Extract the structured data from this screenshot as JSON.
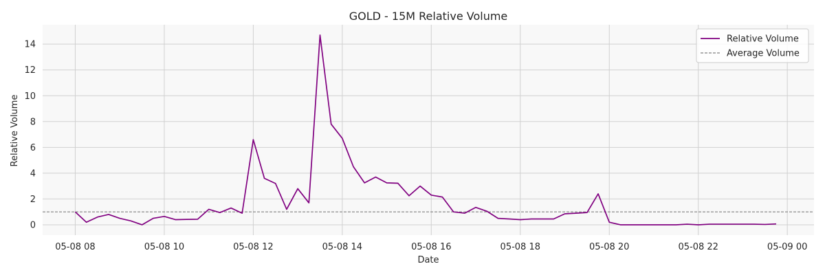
{
  "chart_data": {
    "type": "line",
    "title": "GOLD - 15M Relative Volume",
    "xlabel": "Date",
    "ylabel": "Relative Volume",
    "xlim": [
      "2025-05-08 07:16",
      "2025-05-09 00:36"
    ],
    "ylim": [
      -0.8,
      15.5
    ],
    "grid": true,
    "legend": "top-right",
    "x_ticks": [
      "2025-05-08 08:00",
      "2025-05-08 10:00",
      "2025-05-08 12:00",
      "2025-05-08 14:00",
      "2025-05-08 16:00",
      "2025-05-08 18:00",
      "2025-05-08 20:00",
      "2025-05-08 22:00",
      "2025-05-09 00:00"
    ],
    "x_tick_labels": [
      "05-08 08",
      "05-08 10",
      "05-08 12",
      "05-08 14",
      "05-08 16",
      "05-08 18",
      "05-08 20",
      "05-08 22",
      "05-09 00"
    ],
    "y_ticks": [
      0,
      2,
      4,
      6,
      8,
      10,
      12,
      14
    ],
    "y_tick_labels": [
      "0",
      "2",
      "4",
      "6",
      "8",
      "10",
      "12",
      "14"
    ],
    "series": [
      {
        "name": "Relative Volume",
        "color": "#800080",
        "style": "solid",
        "x": [
          "2025-05-08 08:00",
          "2025-05-08 08:15",
          "2025-05-08 08:30",
          "2025-05-08 08:45",
          "2025-05-08 09:00",
          "2025-05-08 09:15",
          "2025-05-08 09:30",
          "2025-05-08 09:45",
          "2025-05-08 10:00",
          "2025-05-08 10:15",
          "2025-05-08 10:30",
          "2025-05-08 10:45",
          "2025-05-08 11:00",
          "2025-05-08 11:15",
          "2025-05-08 11:30",
          "2025-05-08 11:45",
          "2025-05-08 12:00",
          "2025-05-08 12:15",
          "2025-05-08 12:30",
          "2025-05-08 12:45",
          "2025-05-08 13:00",
          "2025-05-08 13:15",
          "2025-05-08 13:30",
          "2025-05-08 13:45",
          "2025-05-08 14:00",
          "2025-05-08 14:15",
          "2025-05-08 14:30",
          "2025-05-08 14:45",
          "2025-05-08 15:00",
          "2025-05-08 15:15",
          "2025-05-08 15:30",
          "2025-05-08 15:45",
          "2025-05-08 16:00",
          "2025-05-08 16:15",
          "2025-05-08 16:30",
          "2025-05-08 16:45",
          "2025-05-08 17:00",
          "2025-05-08 17:15",
          "2025-05-08 17:30",
          "2025-05-08 17:45",
          "2025-05-08 18:00",
          "2025-05-08 18:15",
          "2025-05-08 18:30",
          "2025-05-08 18:45",
          "2025-05-08 19:00",
          "2025-05-08 19:15",
          "2025-05-08 19:30",
          "2025-05-08 19:45",
          "2025-05-08 20:00",
          "2025-05-08 20:15",
          "2025-05-08 20:30",
          "2025-05-08 20:45",
          "2025-05-08 21:00",
          "2025-05-08 21:15",
          "2025-05-08 21:30",
          "2025-05-08 21:45",
          "2025-05-08 22:00",
          "2025-05-08 22:15",
          "2025-05-08 22:30",
          "2025-05-08 22:45",
          "2025-05-08 23:00",
          "2025-05-08 23:15",
          "2025-05-08 23:30",
          "2025-05-08 23:45"
        ],
        "values": [
          1.0,
          0.2,
          0.6,
          0.8,
          0.5,
          0.3,
          0.0,
          0.5,
          0.65,
          0.4,
          0.42,
          0.43,
          1.2,
          0.95,
          1.3,
          0.9,
          6.6,
          3.6,
          3.2,
          1.2,
          2.8,
          1.7,
          14.7,
          7.8,
          6.7,
          4.5,
          3.25,
          3.7,
          3.25,
          3.22,
          2.25,
          3.0,
          2.3,
          2.15,
          1.0,
          0.9,
          1.35,
          1.05,
          0.5,
          0.45,
          0.4,
          0.45,
          0.45,
          0.45,
          0.85,
          0.9,
          0.95,
          2.4,
          0.2,
          0.0,
          0.0,
          0.0,
          0.0,
          0.0,
          0.0,
          0.05,
          0.0,
          0.05,
          0.05,
          0.05,
          0.05,
          0.05,
          0.03,
          0.07
        ]
      },
      {
        "name": "Average Volume",
        "color": "#808080",
        "style": "dashed",
        "hline": 1.0
      }
    ]
  }
}
